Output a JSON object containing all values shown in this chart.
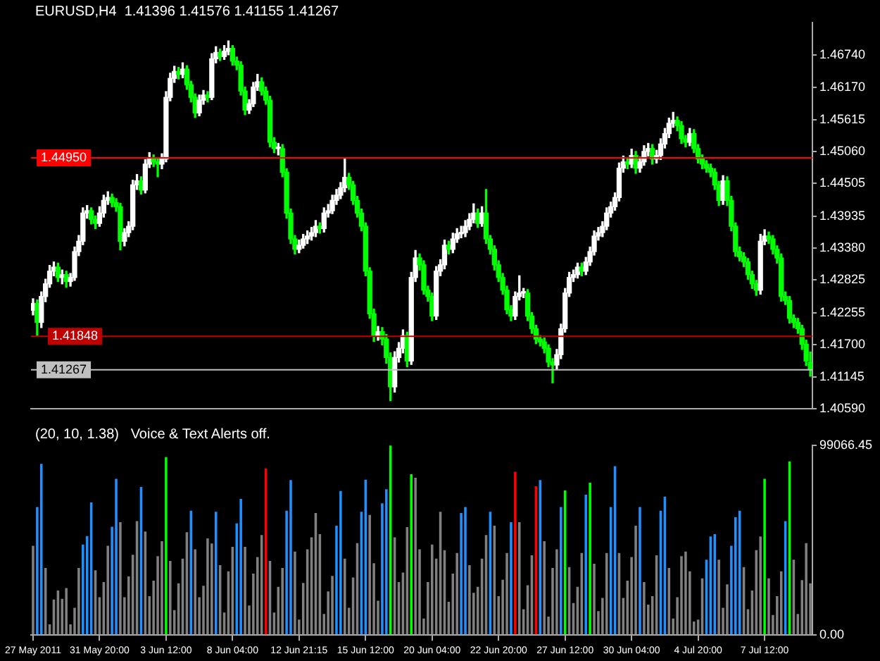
{
  "chart_data": [
    {
      "type": "candlestick",
      "title": "EURUSD,H4  1.41396 1.41576 1.41155 1.41267",
      "tick_labels": "y",
      "colors": [
        "#ffffff",
        "#00ff00",
        "#ffffff",
        "#ffffff",
        "#ffffff",
        "#ffffff",
        "#00ff00",
        "#ffffff",
        "#00ff00",
        "#ffffff",
        "#ffffff",
        "#ffffff",
        "#ffffff",
        "#ffffff",
        "#00ff00",
        "#00ff00",
        "#ffffff",
        "#ffffff",
        "#ffffff",
        "#00ff00",
        "#00ff00",
        "#00ff00",
        "#ffffff",
        "#ffffff",
        "#ffffff",
        "#ffffff",
        "#00ff00",
        "#ffffff",
        "#ffffff",
        "#00ff00",
        "#00ff00",
        "#ffffff",
        "#ffffff",
        "#ffffff",
        "#ffffff",
        "#00ff00",
        "#ffffff",
        "#00ff00",
        "#00ff00",
        "#00ff00",
        "#ffffff",
        "#ffffff",
        "#00ff00",
        "#ffffff",
        "#ffffff",
        "#00ff00",
        "#ffffff",
        "#ffffff",
        "#00ff00",
        "#00ff00",
        "#00ff00",
        "#00ff00",
        "#ffffff",
        "#ffffff",
        "#ffffff",
        "#00ff00",
        "#00ff00",
        "#00ff00",
        "#00ff00",
        "#ffffff",
        "#00ff00",
        "#00ff00",
        "#00ff00",
        "#00ff00",
        "#ffffff",
        "#ffffff",
        "#ffffff",
        "#ffffff",
        "#ffffff",
        "#00ff00",
        "#ffffff",
        "#ffffff",
        "#ffffff",
        "#ffffff",
        "#ffffff",
        "#ffffff",
        "#00ff00",
        "#00ff00",
        "#00ff00",
        "#00ff00",
        "#00ff00",
        "#00ff00",
        "#00ff00",
        "#ffffff",
        "#00ff00",
        "#00ff00",
        "#00ff00",
        "#ffffff",
        "#ffffff",
        "#ffffff",
        "#00ff00",
        "#ffffff",
        "#ffffff",
        "#00ff00",
        "#00ff00",
        "#00ff00",
        "#00ff00",
        "#ffffff",
        "#ffffff",
        "#ffffff",
        "#00ff00",
        "#ffffff",
        "#ffffff",
        "#ffffff",
        "#ffffff",
        "#ffffff",
        "#ffffff",
        "#00ff00",
        "#ffffff",
        "#00ff00",
        "#00ff00",
        "#00ff00",
        "#00ff00",
        "#00ff00",
        "#00ff00",
        "#00ff00",
        "#ffffff",
        "#ffffff",
        "#ffffff",
        "#00ff00",
        "#00ff00",
        "#00ff00",
        "#00ff00",
        "#00ff00",
        "#00ff00",
        "#00ff00",
        "#ffffff",
        "#ffffff",
        "#ffffff",
        "#ffffff",
        "#ffffff",
        "#ffffff",
        "#00ff00",
        "#ffffff",
        "#ffffff",
        "#ffffff",
        "#ffffff",
        "#ffffff",
        "#ffffff",
        "#ffffff",
        "#ffffff",
        "#ffffff",
        "#ffffff",
        "#00ff00",
        "#ffffff",
        "#00ff00",
        "#ffffff",
        "#ffffff",
        "#ffffff",
        "#00ff00",
        "#ffffff",
        "#ffffff",
        "#ffffff",
        "#ffffff",
        "#ffffff",
        "#00ff00",
        "#00ff00",
        "#00ff00",
        "#ffffff",
        "#00ff00",
        "#00ff00",
        "#00ff00",
        "#00ff00",
        "#00ff00",
        "#00ff00",
        "#00ff00",
        "#ffffff",
        "#00ff00",
        "#00ff00",
        "#00ff00",
        "#00ff00",
        "#00ff00",
        "#00ff00",
        "#00ff00",
        "#00ff00",
        "#ffffff",
        "#ffffff",
        "#00ff00",
        "#00ff00",
        "#00ff00",
        "#00ff00",
        "#00ff00",
        "#00ff00",
        "#00ff00",
        "#00ff00",
        "#00ff00",
        "#00ff00",
        "#00ff00"
      ],
      "categories": [
        null,
        null,
        null,
        null,
        null,
        null,
        null,
        null,
        null,
        null,
        null,
        null,
        null,
        null,
        null,
        null,
        null,
        null,
        null,
        null,
        null,
        null,
        null,
        null,
        null,
        null,
        null,
        null,
        null,
        null,
        null,
        null,
        null,
        null,
        null,
        null,
        null,
        null,
        null,
        null,
        null,
        null,
        null,
        null,
        null,
        null,
        null,
        null,
        null,
        null,
        null,
        null,
        null,
        null,
        null,
        null,
        null,
        null,
        null,
        null,
        null,
        null,
        null,
        null,
        null,
        null,
        null,
        null,
        null,
        null,
        null,
        null,
        null,
        null,
        null,
        null,
        null,
        null,
        null,
        null,
        null,
        null,
        null,
        null,
        null,
        null,
        null,
        null,
        null,
        null,
        null,
        null,
        null,
        null,
        null,
        null,
        null,
        null,
        null,
        null,
        null,
        null,
        null,
        null,
        null,
        null,
        null,
        null,
        null,
        null,
        null,
        null,
        null,
        null,
        null,
        null,
        null,
        null,
        null,
        null,
        null,
        null,
        null,
        null,
        null,
        null,
        null,
        null,
        null,
        null,
        null,
        null,
        null,
        null,
        null,
        null,
        null,
        null,
        null,
        null,
        null,
        null,
        null,
        null,
        null,
        null,
        null,
        null,
        null,
        null,
        null,
        null,
        null,
        null,
        null,
        null,
        null,
        null,
        null,
        null,
        null,
        null,
        null,
        null,
        null,
        null,
        null,
        null,
        null,
        null,
        null,
        null,
        null,
        null,
        null,
        null,
        null,
        null,
        null,
        null,
        null,
        null,
        null,
        null,
        null,
        null,
        null,
        null
      ],
      "ohlc": [
        [
          1.423,
          1.425,
          1.4222,
          1.4242
        ],
        [
          1.4242,
          1.4248,
          1.4186,
          1.4209
        ],
        [
          1.4209,
          1.4262,
          1.42,
          1.4254
        ],
        [
          1.4254,
          1.4284,
          1.4245,
          1.4276
        ],
        [
          1.4276,
          1.4308,
          1.427,
          1.4298
        ],
        [
          1.4298,
          1.4314,
          1.429,
          1.4305
        ],
        [
          1.4305,
          1.4312,
          1.428,
          1.4287
        ],
        [
          1.4287,
          1.43,
          1.4276,
          1.4292
        ],
        [
          1.4292,
          1.4298,
          1.427,
          1.428
        ],
        [
          1.428,
          1.4294,
          1.4272,
          1.4287
        ],
        [
          1.4287,
          1.434,
          1.4282,
          1.4332
        ],
        [
          1.4332,
          1.436,
          1.4325,
          1.435
        ],
        [
          1.435,
          1.4408,
          1.4344,
          1.4399
        ],
        [
          1.4399,
          1.4412,
          1.439,
          1.4403
        ],
        [
          1.4403,
          1.4408,
          1.438,
          1.4388
        ],
        [
          1.4388,
          1.4394,
          1.4372,
          1.4381
        ],
        [
          1.4381,
          1.441,
          1.4376,
          1.4399
        ],
        [
          1.4399,
          1.443,
          1.4392,
          1.4421
        ],
        [
          1.4421,
          1.4436,
          1.4414,
          1.4426
        ],
        [
          1.4426,
          1.4432,
          1.441,
          1.4417
        ],
        [
          1.4417,
          1.4424,
          1.4402,
          1.441
        ],
        [
          1.441,
          1.4416,
          1.4335,
          1.435
        ],
        [
          1.435,
          1.4372,
          1.4342,
          1.4365
        ],
        [
          1.4365,
          1.4384,
          1.4358,
          1.4376
        ],
        [
          1.4376,
          1.4456,
          1.437,
          1.4448
        ],
        [
          1.4448,
          1.4466,
          1.444,
          1.4455
        ],
        [
          1.4455,
          1.4462,
          1.4432,
          1.4439
        ],
        [
          1.4439,
          1.4492,
          1.4434,
          1.4484
        ],
        [
          1.4484,
          1.4504,
          1.4478,
          1.4493
        ],
        [
          1.4493,
          1.45,
          1.448,
          1.4488
        ],
        [
          1.4488,
          1.4494,
          1.4462,
          1.4484
        ],
        [
          1.4484,
          1.4502,
          1.4476,
          1.4493
        ],
        [
          1.4493,
          1.461,
          1.4488,
          1.46
        ],
        [
          1.46,
          1.4642,
          1.4594,
          1.4633
        ],
        [
          1.4633,
          1.4654,
          1.4626,
          1.4645
        ],
        [
          1.4645,
          1.4652,
          1.4632,
          1.464
        ],
        [
          1.464,
          1.466,
          1.4634,
          1.4649
        ],
        [
          1.4649,
          1.4655,
          1.4614,
          1.4622
        ],
        [
          1.4622,
          1.4628,
          1.4592,
          1.46
        ],
        [
          1.46,
          1.4606,
          1.4565,
          1.4573
        ],
        [
          1.4573,
          1.4604,
          1.4568,
          1.4595
        ],
        [
          1.4595,
          1.4612,
          1.4588,
          1.4604
        ],
        [
          1.4604,
          1.461,
          1.4592,
          1.46
        ],
        [
          1.46,
          1.4676,
          1.4596,
          1.4667
        ],
        [
          1.4667,
          1.4688,
          1.466,
          1.4678
        ],
        [
          1.4678,
          1.4684,
          1.4664,
          1.4671
        ],
        [
          1.4671,
          1.469,
          1.4666,
          1.468
        ],
        [
          1.468,
          1.4698,
          1.4674,
          1.4685
        ],
        [
          1.4685,
          1.469,
          1.4656,
          1.4663
        ],
        [
          1.4663,
          1.467,
          1.4648,
          1.4656
        ],
        [
          1.4656,
          1.4662,
          1.4604,
          1.4611
        ],
        [
          1.4611,
          1.4618,
          1.457,
          1.4578
        ],
        [
          1.4578,
          1.4596,
          1.4572,
          1.4589
        ],
        [
          1.4589,
          1.4626,
          1.4584,
          1.4618
        ],
        [
          1.4618,
          1.464,
          1.4612,
          1.4627
        ],
        [
          1.4627,
          1.4634,
          1.4604,
          1.4611
        ],
        [
          1.4611,
          1.4618,
          1.4588,
          1.4595
        ],
        [
          1.4595,
          1.4602,
          1.4514,
          1.4522
        ],
        [
          1.4522,
          1.453,
          1.4504,
          1.4511
        ],
        [
          1.4511,
          1.452,
          1.45,
          1.4511
        ],
        [
          1.4511,
          1.4518,
          1.4462,
          1.447
        ],
        [
          1.447,
          1.4476,
          1.439,
          1.4399
        ],
        [
          1.4399,
          1.4406,
          1.4346,
          1.4354
        ],
        [
          1.4354,
          1.436,
          1.4328,
          1.4336
        ],
        [
          1.4336,
          1.4352,
          1.433,
          1.4343
        ],
        [
          1.4343,
          1.4362,
          1.4338,
          1.4354
        ],
        [
          1.4354,
          1.4368,
          1.4346,
          1.4359
        ],
        [
          1.4359,
          1.4374,
          1.4352,
          1.4365
        ],
        [
          1.4365,
          1.4386,
          1.4358,
          1.4376
        ],
        [
          1.4376,
          1.4382,
          1.4364,
          1.4372
        ],
        [
          1.4372,
          1.4408,
          1.4366,
          1.4399
        ],
        [
          1.4399,
          1.4414,
          1.4392,
          1.4403
        ],
        [
          1.4403,
          1.443,
          1.4398,
          1.4421
        ],
        [
          1.4421,
          1.444,
          1.4414,
          1.443
        ],
        [
          1.443,
          1.4452,
          1.4424,
          1.4443
        ],
        [
          1.4443,
          1.4495,
          1.4436,
          1.4461
        ],
        [
          1.4461,
          1.4468,
          1.444,
          1.4448
        ],
        [
          1.4448,
          1.4454,
          1.4414,
          1.4421
        ],
        [
          1.4421,
          1.4428,
          1.4392,
          1.4399
        ],
        [
          1.4399,
          1.4406,
          1.4368,
          1.4376
        ],
        [
          1.4376,
          1.4382,
          1.429,
          1.4298
        ],
        [
          1.4298,
          1.4304,
          1.4216,
          1.4224
        ],
        [
          1.4224,
          1.4232,
          1.4176,
          1.4186
        ],
        [
          1.4186,
          1.4202,
          1.4178,
          1.4193
        ],
        [
          1.4193,
          1.42,
          1.417,
          1.418
        ],
        [
          1.418,
          1.4188,
          1.4138,
          1.4148
        ],
        [
          1.4148,
          1.4156,
          1.4073,
          1.4097
        ],
        [
          1.4097,
          1.4158,
          1.4088,
          1.4148
        ],
        [
          1.4148,
          1.4174,
          1.414,
          1.4164
        ],
        [
          1.4164,
          1.4196,
          1.4156,
          1.4186
        ],
        [
          1.4186,
          1.4192,
          1.4132,
          1.4142
        ],
        [
          1.4142,
          1.4296,
          1.4136,
          1.4287
        ],
        [
          1.4287,
          1.4334,
          1.428,
          1.4321
        ],
        [
          1.4321,
          1.4328,
          1.43,
          1.4309
        ],
        [
          1.4309,
          1.4316,
          1.4258,
          1.4265
        ],
        [
          1.4265,
          1.4272,
          1.4246,
          1.4254
        ],
        [
          1.4254,
          1.426,
          1.4212,
          1.422
        ],
        [
          1.422,
          1.4306,
          1.4214,
          1.4298
        ],
        [
          1.4298,
          1.4318,
          1.429,
          1.4309
        ],
        [
          1.4309,
          1.4352,
          1.4302,
          1.4343
        ],
        [
          1.4343,
          1.435,
          1.4328,
          1.4336
        ],
        [
          1.4336,
          1.4364,
          1.433,
          1.4354
        ],
        [
          1.4354,
          1.4372,
          1.4348,
          1.4363
        ],
        [
          1.4363,
          1.4376,
          1.4356,
          1.4365
        ],
        [
          1.4365,
          1.4386,
          1.4358,
          1.4376
        ],
        [
          1.4376,
          1.4398,
          1.437,
          1.4388
        ],
        [
          1.4388,
          1.4415,
          1.4382,
          1.4399
        ],
        [
          1.4399,
          1.4406,
          1.4374,
          1.4381
        ],
        [
          1.4381,
          1.441,
          1.4376,
          1.4399
        ],
        [
          1.4399,
          1.444,
          1.4346,
          1.4354
        ],
        [
          1.4354,
          1.436,
          1.4328,
          1.4336
        ],
        [
          1.4336,
          1.4342,
          1.43,
          1.4309
        ],
        [
          1.4309,
          1.4316,
          1.428,
          1.4287
        ],
        [
          1.4287,
          1.4294,
          1.4258,
          1.4265
        ],
        [
          1.4265,
          1.4272,
          1.4224,
          1.4231
        ],
        [
          1.4231,
          1.4238,
          1.4212,
          1.422
        ],
        [
          1.422,
          1.4262,
          1.4214,
          1.4254
        ],
        [
          1.4254,
          1.429,
          1.4248,
          1.426
        ],
        [
          1.426,
          1.4268,
          1.4252,
          1.426
        ],
        [
          1.426,
          1.4266,
          1.4212,
          1.422
        ],
        [
          1.422,
          1.4226,
          1.419,
          1.4198
        ],
        [
          1.4198,
          1.4204,
          1.4172,
          1.418
        ],
        [
          1.418,
          1.4186,
          1.4168,
          1.4175
        ],
        [
          1.4175,
          1.4182,
          1.4156,
          1.4164
        ],
        [
          1.4164,
          1.417,
          1.4132,
          1.414
        ],
        [
          1.414,
          1.4146,
          1.4104,
          1.4135
        ],
        [
          1.4135,
          1.4162,
          1.4128,
          1.4153
        ],
        [
          1.4153,
          1.4206,
          1.4146,
          1.4198
        ],
        [
          1.4198,
          1.4268,
          1.4192,
          1.426
        ],
        [
          1.426,
          1.4296,
          1.4254,
          1.4287
        ],
        [
          1.4287,
          1.43,
          1.428,
          1.4292
        ],
        [
          1.4292,
          1.4312,
          1.4286,
          1.4305
        ],
        [
          1.4305,
          1.4312,
          1.429,
          1.4298
        ],
        [
          1.4298,
          1.4322,
          1.4292,
          1.4314
        ],
        [
          1.4314,
          1.434,
          1.4308,
          1.4332
        ],
        [
          1.4332,
          1.4368,
          1.4326,
          1.4359
        ],
        [
          1.4359,
          1.4374,
          1.4352,
          1.4365
        ],
        [
          1.4365,
          1.4384,
          1.4358,
          1.4376
        ],
        [
          1.4376,
          1.4408,
          1.437,
          1.4399
        ],
        [
          1.4399,
          1.4418,
          1.4392,
          1.441
        ],
        [
          1.441,
          1.4434,
          1.4404,
          1.4426
        ],
        [
          1.4426,
          1.4486,
          1.442,
          1.4477
        ],
        [
          1.4477,
          1.4498,
          1.447,
          1.4488
        ],
        [
          1.4488,
          1.4494,
          1.4476,
          1.4484
        ],
        [
          1.4484,
          1.451,
          1.4478,
          1.4499
        ],
        [
          1.4499,
          1.4506,
          1.4468,
          1.4477
        ],
        [
          1.4477,
          1.4496,
          1.447,
          1.4488
        ],
        [
          1.4488,
          1.4516,
          1.4482,
          1.4506
        ],
        [
          1.4506,
          1.452,
          1.4498,
          1.4511
        ],
        [
          1.4511,
          1.4518,
          1.4484,
          1.4493
        ],
        [
          1.4493,
          1.4508,
          1.4486,
          1.4499
        ],
        [
          1.4499,
          1.4528,
          1.4492,
          1.4519
        ],
        [
          1.4519,
          1.4546,
          1.4512,
          1.4537
        ],
        [
          1.4537,
          1.4564,
          1.453,
          1.4555
        ],
        [
          1.4555,
          1.4574,
          1.4548,
          1.456
        ],
        [
          1.456,
          1.4566,
          1.4542,
          1.4551
        ],
        [
          1.4551,
          1.4558,
          1.452,
          1.4528
        ],
        [
          1.4528,
          1.4534,
          1.4514,
          1.4522
        ],
        [
          1.4522,
          1.4546,
          1.4516,
          1.4537
        ],
        [
          1.4537,
          1.4544,
          1.4504,
          1.4511
        ],
        [
          1.4511,
          1.4518,
          1.4486,
          1.4493
        ],
        [
          1.4493,
          1.45,
          1.4476,
          1.4484
        ],
        [
          1.4484,
          1.449,
          1.447,
          1.4477
        ],
        [
          1.4477,
          1.4484,
          1.4462,
          1.447
        ],
        [
          1.447,
          1.4476,
          1.444,
          1.4448
        ],
        [
          1.4448,
          1.4454,
          1.4412,
          1.4421
        ],
        [
          1.4421,
          1.4464,
          1.4414,
          1.4455
        ],
        [
          1.4455,
          1.4462,
          1.4412,
          1.4421
        ],
        [
          1.4421,
          1.4428,
          1.4368,
          1.4376
        ],
        [
          1.4376,
          1.4382,
          1.4324,
          1.4332
        ],
        [
          1.4332,
          1.434,
          1.4316,
          1.4323
        ],
        [
          1.4323,
          1.433,
          1.4306,
          1.4314
        ],
        [
          1.4314,
          1.432,
          1.4284,
          1.4292
        ],
        [
          1.4292,
          1.4298,
          1.4268,
          1.4276
        ],
        [
          1.4276,
          1.4282,
          1.4256,
          1.4265
        ],
        [
          1.4265,
          1.4362,
          1.4258,
          1.435
        ],
        [
          1.435,
          1.437,
          1.4344,
          1.4359
        ],
        [
          1.4359,
          1.4366,
          1.4346,
          1.4354
        ],
        [
          1.4354,
          1.436,
          1.4328,
          1.4336
        ],
        [
          1.4336,
          1.4342,
          1.4312,
          1.4321
        ],
        [
          1.4321,
          1.4328,
          1.4246,
          1.4254
        ],
        [
          1.4254,
          1.4262,
          1.424,
          1.4247
        ],
        [
          1.4247,
          1.4254,
          1.4208,
          1.4216
        ],
        [
          1.4216,
          1.4222,
          1.42,
          1.4209
        ],
        [
          1.4209,
          1.4216,
          1.419,
          1.4198
        ],
        [
          1.4198,
          1.4204,
          1.4162,
          1.4171
        ],
        [
          1.4171,
          1.4178,
          1.4134,
          1.4142
        ],
        [
          1.41396,
          1.41576,
          1.41155,
          1.41267
        ]
      ],
      "ylim": [
        1.4059,
        1.473
      ],
      "yticks": [
        {
          "value": 1.4059,
          "label": "1.40590"
        },
        {
          "value": 1.41145,
          "label": "1.41145"
        },
        {
          "value": 1.417,
          "label": "1.41700"
        },
        {
          "value": 1.42255,
          "label": "1.42255"
        },
        {
          "value": 1.42825,
          "label": "1.42825"
        },
        {
          "value": 1.4338,
          "label": "1.43380"
        },
        {
          "value": 1.43935,
          "label": "1.43935"
        },
        {
          "value": 1.44505,
          "label": "1.44505"
        },
        {
          "value": 1.4506,
          "label": "1.45060"
        },
        {
          "value": 1.45615,
          "label": "1.45615"
        },
        {
          "value": 1.4617,
          "label": "1.46170"
        },
        {
          "value": 1.4674,
          "label": "1.46740"
        }
      ],
      "ref_lines": [
        {
          "axis": "y",
          "value": 1.4495,
          "label": "1.44950",
          "color": "#ff0000"
        },
        {
          "axis": "y",
          "value": 1.41848,
          "label": "1.41848",
          "color": "#c00000"
        },
        {
          "axis": "y",
          "value": 1.41267,
          "label": "1.41267",
          "color": "#c0c0c0"
        }
      ]
    },
    {
      "type": "bar",
      "title": "(20, 10, 1.38)   Voice & Text Alerts off.",
      "categories": [
        "27 May 2011",
        null,
        null,
        null,
        null,
        null,
        null,
        null,
        null,
        null,
        null,
        null,
        null,
        null,
        null,
        null,
        "31 May 20:00",
        null,
        null,
        null,
        null,
        null,
        null,
        null,
        null,
        null,
        null,
        null,
        null,
        null,
        null,
        null,
        "3 Jun 12:00",
        null,
        null,
        null,
        null,
        null,
        null,
        null,
        null,
        null,
        null,
        null,
        null,
        null,
        null,
        null,
        "8 Jun 04:00",
        null,
        null,
        null,
        null,
        null,
        null,
        null,
        null,
        null,
        null,
        null,
        null,
        null,
        null,
        null,
        "12 Jun 21:15",
        null,
        null,
        null,
        null,
        null,
        null,
        null,
        null,
        null,
        null,
        null,
        null,
        null,
        null,
        null,
        "15 Jun 12:00",
        null,
        null,
        null,
        null,
        null,
        null,
        null,
        null,
        null,
        null,
        null,
        null,
        null,
        null,
        null,
        "20 Jun 04:00",
        null,
        null,
        null,
        null,
        null,
        null,
        null,
        null,
        null,
        null,
        null,
        null,
        null,
        null,
        null,
        "22 Jun 20:00",
        null,
        null,
        null,
        null,
        null,
        null,
        null,
        null,
        null,
        null,
        null,
        null,
        null,
        null,
        null,
        "27 Jun 12:00",
        null,
        null,
        null,
        null,
        null,
        null,
        null,
        null,
        null,
        null,
        null,
        null,
        null,
        null,
        null,
        "30 Jun 04:00",
        null,
        null,
        null,
        null,
        null,
        null,
        null,
        null,
        null,
        null,
        null,
        null,
        null,
        null,
        null,
        "4 Jul 20:00",
        null,
        null,
        null,
        null,
        null,
        null,
        null,
        null,
        null,
        null,
        null,
        null,
        null,
        null,
        null,
        "7 Jul 12:00",
        null,
        null,
        null,
        null,
        null,
        null,
        null,
        null,
        null,
        null,
        null
      ],
      "values": [
        46600,
        66900,
        89400,
        35000,
        5600,
        18600,
        23300,
        18900,
        24500,
        5600,
        14200,
        35000,
        47300,
        51700,
        69300,
        33800,
        19800,
        27700,
        46600,
        56600,
        81600,
        59000,
        19800,
        30600,
        41900,
        59500,
        77400,
        54100,
        20300,
        28400,
        41200,
        49000,
        92900,
        38700,
        13000,
        27000,
        39900,
        53700,
        64900,
        44800,
        19800,
        25700,
        50500,
        47800,
        64400,
        36500,
        11800,
        33300,
        46100,
        58300,
        71100,
        46100,
        15400,
        32100,
        40700,
        52200,
        87000,
        38700,
        11800,
        25200,
        35000,
        64900,
        80900,
        43600,
        8100,
        27200,
        44800,
        51000,
        63700,
        52700,
        11000,
        22800,
        30900,
        57100,
        75200,
        39900,
        14200,
        30100,
        48000,
        64400,
        81100,
        62700,
        37500,
        17900,
        68800,
        76200,
        99000,
        51000,
        27700,
        32600,
        56400,
        84000,
        82100,
        44800,
        8600,
        27700,
        47300,
        39900,
        64400,
        44300,
        17400,
        32100,
        42900,
        63700,
        66900,
        36500,
        22100,
        25200,
        39900,
        52200,
        64400,
        57100,
        20300,
        28900,
        42900,
        59000,
        85300,
        59000,
        13500,
        26000,
        41700,
        77700,
        80900,
        49000,
        9600,
        35000,
        44800,
        66900,
        75500,
        35500,
        16700,
        25200,
        42900,
        73300,
        79600,
        37200,
        12500,
        19400,
        42900,
        66900,
        88200,
        42900,
        19400,
        28400,
        40700,
        57100,
        66900,
        27700,
        15900,
        20300,
        41700,
        64900,
        72300,
        35000,
        8600,
        19800,
        41200,
        43600,
        33300,
        7100,
        8100,
        29600,
        39400,
        51500,
        52700,
        39400,
        14200,
        26500,
        46600,
        61500,
        64900,
        35500,
        13500,
        23300,
        44300,
        51500,
        81600,
        29600,
        10500,
        20300,
        33300,
        59500,
        90700,
        39400,
        11000,
        28700,
        48000,
        27000
      ],
      "colors": [
        "#808080",
        "#1e90ff",
        "#1e90ff",
        "#808080",
        "#808080",
        "#808080",
        "#808080",
        "#808080",
        "#808080",
        "#808080",
        "#808080",
        "#808080",
        "#1e90ff",
        "#1e90ff",
        "#1e90ff",
        "#808080",
        "#808080",
        "#808080",
        "#808080",
        "#1e90ff",
        "#1e90ff",
        "#808080",
        "#808080",
        "#808080",
        "#808080",
        "#808080",
        "#1e90ff",
        "#808080",
        "#808080",
        "#808080",
        "#808080",
        "#808080",
        "#00ff00",
        "#808080",
        "#808080",
        "#808080",
        "#808080",
        "#808080",
        "#1e90ff",
        "#808080",
        "#808080",
        "#808080",
        "#808080",
        "#808080",
        "#1e90ff",
        "#808080",
        "#808080",
        "#808080",
        "#808080",
        "#1e90ff",
        "#1e90ff",
        "#808080",
        "#808080",
        "#808080",
        "#808080",
        "#808080",
        "#ff0000",
        "#808080",
        "#808080",
        "#808080",
        "#808080",
        "#1e90ff",
        "#1e90ff",
        "#808080",
        "#808080",
        "#808080",
        "#808080",
        "#808080",
        "#808080",
        "#808080",
        "#808080",
        "#808080",
        "#808080",
        "#1e90ff",
        "#1e90ff",
        "#808080",
        "#808080",
        "#808080",
        "#808080",
        "#1e90ff",
        "#1e90ff",
        "#808080",
        "#808080",
        "#808080",
        "#1e90ff",
        "#1e90ff",
        "#00ff00",
        "#808080",
        "#808080",
        "#808080",
        "#808080",
        "#00ff00",
        "#808080",
        "#808080",
        "#808080",
        "#808080",
        "#808080",
        "#808080",
        "#808080",
        "#808080",
        "#808080",
        "#808080",
        "#808080",
        "#1e90ff",
        "#1e90ff",
        "#808080",
        "#808080",
        "#808080",
        "#808080",
        "#808080",
        "#1e90ff",
        "#808080",
        "#808080",
        "#808080",
        "#808080",
        "#1e90ff",
        "#ff0000",
        "#808080",
        "#808080",
        "#808080",
        "#808080",
        "#ff0000",
        "#1e90ff",
        "#808080",
        "#808080",
        "#808080",
        "#808080",
        "#1e90ff",
        "#00ff00",
        "#808080",
        "#808080",
        "#808080",
        "#808080",
        "#1e90ff",
        "#00ff00",
        "#808080",
        "#808080",
        "#808080",
        "#808080",
        "#1e90ff",
        "#1e90ff",
        "#808080",
        "#808080",
        "#808080",
        "#808080",
        "#808080",
        "#1e90ff",
        "#808080",
        "#808080",
        "#808080",
        "#808080",
        "#1e90ff",
        "#1e90ff",
        "#808080",
        "#808080",
        "#808080",
        "#808080",
        "#808080",
        "#808080",
        "#808080",
        "#808080",
        "#808080",
        "#1e90ff",
        "#1e90ff",
        "#1e90ff",
        "#808080",
        "#808080",
        "#808080",
        "#1e90ff",
        "#1e90ff",
        "#1e90ff",
        "#808080",
        "#808080",
        "#808080",
        "#808080",
        "#808080",
        "#00ff00",
        "#808080",
        "#808080",
        "#808080",
        "#808080",
        "#1e90ff",
        "#00ff00",
        "#808080",
        "#808080",
        "#808080",
        "#808080",
        "#808080"
      ],
      "ylim": [
        0,
        99066.45
      ],
      "yticks": [
        {
          "value": 0,
          "label": "0.00"
        },
        {
          "value": 99066.45,
          "label": "99066.45"
        }
      ]
    }
  ]
}
